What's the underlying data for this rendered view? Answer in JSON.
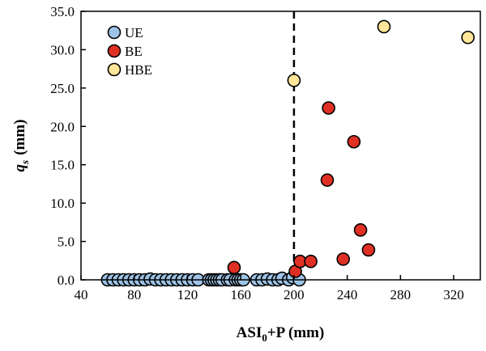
{
  "chart_data": {
    "type": "scatter",
    "title": "",
    "xlabel": {
      "main": "ASI",
      "sub": "0",
      "rest": "+P (mm)"
    },
    "ylabel": {
      "main": "q",
      "sub": "s",
      "rest": "(mm)"
    },
    "xlim": [
      40,
      340
    ],
    "ylim": [
      0,
      35
    ],
    "xticks": [
      40,
      80,
      120,
      160,
      200,
      240,
      280,
      320
    ],
    "yticks": [
      "0.0",
      "5.0",
      "10.0",
      "15.0",
      "20.0",
      "25.0",
      "30.0",
      "35.0"
    ],
    "grid": false,
    "legend_position": "top-left",
    "threshold_x": 200,
    "series": [
      {
        "name": "UE",
        "color": "#9DC3E6",
        "points": [
          [
            60,
            0
          ],
          [
            64,
            0
          ],
          [
            68,
            0
          ],
          [
            72,
            0
          ],
          [
            76,
            0
          ],
          [
            80,
            0
          ],
          [
            84,
            0
          ],
          [
            88,
            0
          ],
          [
            92,
            0.1
          ],
          [
            96,
            0
          ],
          [
            100,
            0
          ],
          [
            104,
            0
          ],
          [
            108,
            0
          ],
          [
            112,
            0
          ],
          [
            116,
            0
          ],
          [
            120,
            0
          ],
          [
            124,
            0
          ],
          [
            128,
            0
          ],
          [
            136,
            0
          ],
          [
            138,
            0
          ],
          [
            140,
            0
          ],
          [
            142,
            0
          ],
          [
            144,
            0
          ],
          [
            146,
            0
          ],
          [
            150,
            0
          ],
          [
            152,
            0
          ],
          [
            156,
            0
          ],
          [
            158,
            0
          ],
          [
            160,
            0
          ],
          [
            162,
            0
          ],
          [
            172,
            0
          ],
          [
            176,
            0
          ],
          [
            180,
            0.1
          ],
          [
            184,
            0
          ],
          [
            188,
            0
          ],
          [
            191,
            0.2
          ],
          [
            196,
            0
          ],
          [
            199,
            0.3
          ],
          [
            204,
            0
          ]
        ]
      },
      {
        "name": "BE",
        "color": "#E03024",
        "points": [
          [
            155,
            1.6
          ],
          [
            201,
            1.1
          ],
          [
            204.6,
            2.4
          ],
          [
            212.6,
            2.4
          ],
          [
            237,
            2.7
          ],
          [
            256,
            3.9
          ],
          [
            250,
            6.5
          ],
          [
            225,
            13.0
          ],
          [
            245,
            18.0
          ],
          [
            226,
            22.4
          ]
        ]
      },
      {
        "name": "HBE",
        "color": "#FFE699",
        "points": [
          [
            200,
            26.0
          ],
          [
            267.6,
            33.0
          ],
          [
            330.7,
            31.6
          ]
        ]
      }
    ]
  }
}
